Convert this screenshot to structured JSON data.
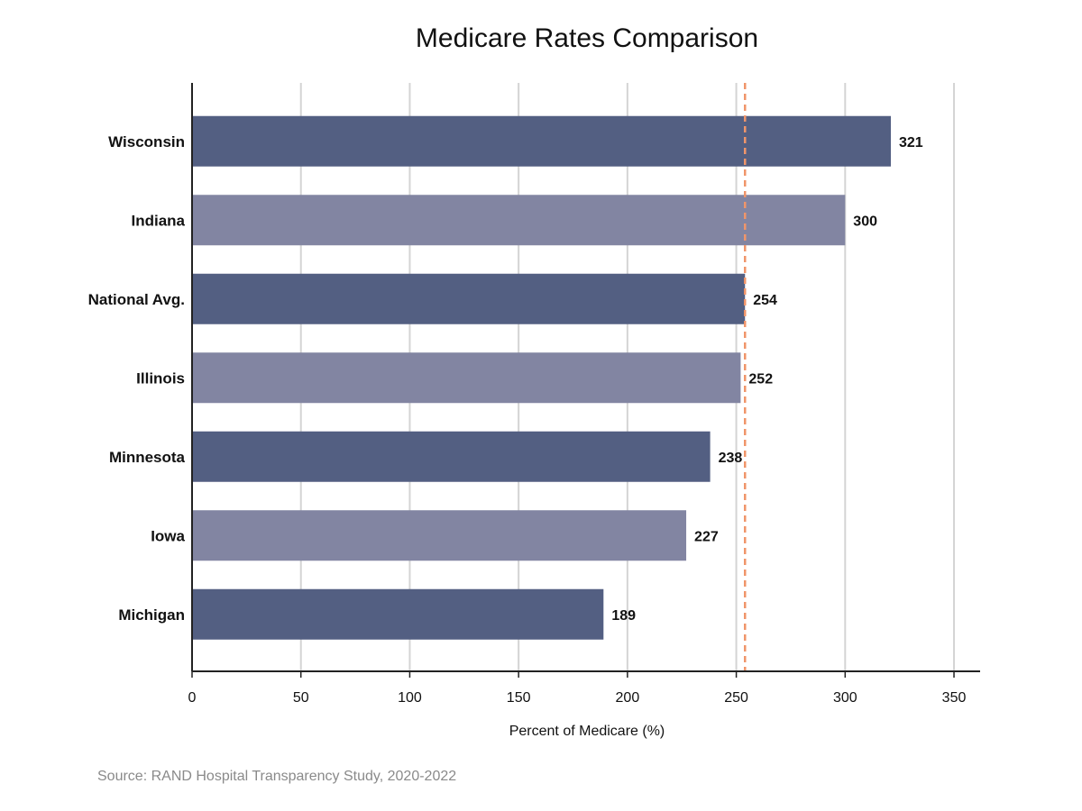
{
  "chart_data": {
    "type": "bar",
    "orientation": "horizontal",
    "title": "Medicare Rates Comparison",
    "xlabel": "Percent of Medicare (%)",
    "ylabel": "",
    "categories": [
      "Wisconsin",
      "Indiana",
      "National Avg.",
      "Illinois",
      "Minnesota",
      "Iowa",
      "Michigan"
    ],
    "values": [
      321,
      300,
      254,
      252,
      238,
      227,
      189
    ],
    "value_labels": [
      "321",
      "300",
      "254",
      "252",
      "238",
      "227",
      "189"
    ],
    "bar_colors": [
      "#535f82",
      "#8285a2",
      "#535f82",
      "#8285a2",
      "#535f82",
      "#8285a2",
      "#535f82"
    ],
    "xlim": [
      0,
      362
    ],
    "xticks": [
      0,
      50,
      100,
      150,
      200,
      250,
      300,
      350
    ],
    "xtick_labels": [
      "0",
      "50",
      "100",
      "150",
      "200",
      "250",
      "300",
      "350"
    ],
    "reference_line": {
      "value": 254,
      "color": "#f0956a",
      "style": "dashed"
    },
    "grid": "vertical",
    "legend": "none"
  },
  "source_text": "Source: RAND Hospital Transparency Study, 2020-2022"
}
